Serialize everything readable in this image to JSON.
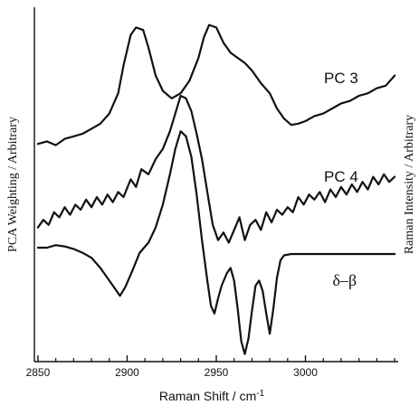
{
  "chart_data": {
    "type": "line",
    "xlabel": "Raman Shift / cm",
    "xlabel_superscript": "-1",
    "ylabel_left": "PCA Weighting / Arbitrary",
    "ylabel_right": "Raman Intensity / Arbitrary",
    "xlim": [
      2848,
      3052
    ],
    "ylim": [
      -2.4,
      11.6
    ],
    "x_ticks": [
      2850,
      2900,
      2950,
      3000
    ],
    "x_tick_labels": [
      "2850",
      "2900",
      "2950",
      "3000"
    ],
    "x_minor_tick_step": 10,
    "grid": false,
    "series": [
      {
        "name": "PC 3",
        "label_x": 3020,
        "label_y": 8.6,
        "points": [
          [
            2850,
            6.2
          ],
          [
            2855,
            6.3
          ],
          [
            2860,
            6.15
          ],
          [
            2865,
            6.4
          ],
          [
            2870,
            6.5
          ],
          [
            2875,
            6.6
          ],
          [
            2880,
            6.8
          ],
          [
            2885,
            7.0
          ],
          [
            2890,
            7.4
          ],
          [
            2895,
            8.2
          ],
          [
            2898,
            9.3
          ],
          [
            2902,
            10.5
          ],
          [
            2905,
            10.8
          ],
          [
            2909,
            10.7
          ],
          [
            2912,
            10.0
          ],
          [
            2916,
            8.9
          ],
          [
            2920,
            8.3
          ],
          [
            2925,
            8.0
          ],
          [
            2930,
            8.2
          ],
          [
            2935,
            8.7
          ],
          [
            2940,
            9.6
          ],
          [
            2943,
            10.4
          ],
          [
            2946,
            10.9
          ],
          [
            2950,
            10.8
          ],
          [
            2954,
            10.2
          ],
          [
            2958,
            9.8
          ],
          [
            2962,
            9.6
          ],
          [
            2966,
            9.4
          ],
          [
            2970,
            9.1
          ],
          [
            2975,
            8.6
          ],
          [
            2980,
            8.2
          ],
          [
            2984,
            7.6
          ],
          [
            2988,
            7.2
          ],
          [
            2992,
            6.95
          ],
          [
            2996,
            7.0
          ],
          [
            3000,
            7.1
          ],
          [
            3005,
            7.3
          ],
          [
            3010,
            7.4
          ],
          [
            3015,
            7.6
          ],
          [
            3020,
            7.8
          ],
          [
            3025,
            7.9
          ],
          [
            3030,
            8.1
          ],
          [
            3035,
            8.2
          ],
          [
            3040,
            8.4
          ],
          [
            3045,
            8.5
          ],
          [
            3050,
            8.9
          ]
        ]
      },
      {
        "name": "PC 4",
        "label_x": 3020,
        "label_y": 4.7,
        "points": [
          [
            2850,
            2.9
          ],
          [
            2853,
            3.2
          ],
          [
            2856,
            3.0
          ],
          [
            2859,
            3.5
          ],
          [
            2862,
            3.3
          ],
          [
            2865,
            3.7
          ],
          [
            2868,
            3.4
          ],
          [
            2871,
            3.8
          ],
          [
            2874,
            3.6
          ],
          [
            2877,
            4.0
          ],
          [
            2880,
            3.7
          ],
          [
            2883,
            4.1
          ],
          [
            2886,
            3.8
          ],
          [
            2889,
            4.2
          ],
          [
            2892,
            3.9
          ],
          [
            2895,
            4.3
          ],
          [
            2898,
            4.1
          ],
          [
            2902,
            4.8
          ],
          [
            2905,
            4.5
          ],
          [
            2908,
            5.2
          ],
          [
            2912,
            5.0
          ],
          [
            2916,
            5.6
          ],
          [
            2920,
            6.0
          ],
          [
            2924,
            6.7
          ],
          [
            2927,
            7.4
          ],
          [
            2930,
            8.1
          ],
          [
            2933,
            8.0
          ],
          [
            2936,
            7.5
          ],
          [
            2939,
            6.6
          ],
          [
            2942,
            5.6
          ],
          [
            2945,
            4.3
          ],
          [
            2948,
            3.0
          ],
          [
            2951,
            2.4
          ],
          [
            2954,
            2.7
          ],
          [
            2957,
            2.3
          ],
          [
            2960,
            2.8
          ],
          [
            2963,
            3.3
          ],
          [
            2966,
            2.4
          ],
          [
            2969,
            3.0
          ],
          [
            2972,
            3.2
          ],
          [
            2975,
            2.8
          ],
          [
            2978,
            3.5
          ],
          [
            2981,
            3.1
          ],
          [
            2984,
            3.6
          ],
          [
            2987,
            3.4
          ],
          [
            2990,
            3.7
          ],
          [
            2993,
            3.5
          ],
          [
            2996,
            4.1
          ],
          [
            2999,
            3.8
          ],
          [
            3002,
            4.2
          ],
          [
            3005,
            4.0
          ],
          [
            3008,
            4.3
          ],
          [
            3011,
            3.9
          ],
          [
            3014,
            4.4
          ],
          [
            3017,
            4.1
          ],
          [
            3020,
            4.5
          ],
          [
            3023,
            4.2
          ],
          [
            3026,
            4.6
          ],
          [
            3029,
            4.3
          ],
          [
            3032,
            4.7
          ],
          [
            3035,
            4.4
          ],
          [
            3038,
            4.9
          ],
          [
            3041,
            4.6
          ],
          [
            3044,
            5.0
          ],
          [
            3047,
            4.7
          ],
          [
            3050,
            4.9
          ]
        ]
      },
      {
        "name": "δ–β",
        "label_x": 3022,
        "label_y": 0.6,
        "points": [
          [
            2850,
            2.1
          ],
          [
            2855,
            2.1
          ],
          [
            2860,
            2.2
          ],
          [
            2865,
            2.15
          ],
          [
            2870,
            2.05
          ],
          [
            2875,
            1.9
          ],
          [
            2880,
            1.7
          ],
          [
            2885,
            1.3
          ],
          [
            2890,
            0.8
          ],
          [
            2893,
            0.5
          ],
          [
            2896,
            0.2
          ],
          [
            2899,
            0.55
          ],
          [
            2903,
            1.2
          ],
          [
            2907,
            1.9
          ],
          [
            2912,
            2.3
          ],
          [
            2916,
            2.9
          ],
          [
            2920,
            3.8
          ],
          [
            2924,
            5.0
          ],
          [
            2927,
            6.0
          ],
          [
            2930,
            6.7
          ],
          [
            2933,
            6.5
          ],
          [
            2936,
            5.7
          ],
          [
            2939,
            4.2
          ],
          [
            2942,
            2.4
          ],
          [
            2945,
            0.8
          ],
          [
            2947,
            -0.2
          ],
          [
            2949,
            -0.5
          ],
          [
            2951,
            0.1
          ],
          [
            2953,
            0.6
          ],
          [
            2956,
            1.1
          ],
          [
            2958,
            1.3
          ],
          [
            2960,
            0.8
          ],
          [
            2962,
            -0.3
          ],
          [
            2964,
            -1.6
          ],
          [
            2966,
            -2.1
          ],
          [
            2968,
            -1.5
          ],
          [
            2970,
            -0.4
          ],
          [
            2972,
            0.6
          ],
          [
            2974,
            0.8
          ],
          [
            2976,
            0.4
          ],
          [
            2978,
            -0.5
          ],
          [
            2980,
            -1.3
          ],
          [
            2982,
            -0.3
          ],
          [
            2984,
            0.9
          ],
          [
            2986,
            1.6
          ],
          [
            2988,
            1.8
          ],
          [
            2992,
            1.85
          ],
          [
            3000,
            1.85
          ],
          [
            3010,
            1.85
          ],
          [
            3020,
            1.85
          ],
          [
            3030,
            1.85
          ],
          [
            3040,
            1.85
          ],
          [
            3050,
            1.85
          ]
        ]
      }
    ]
  }
}
